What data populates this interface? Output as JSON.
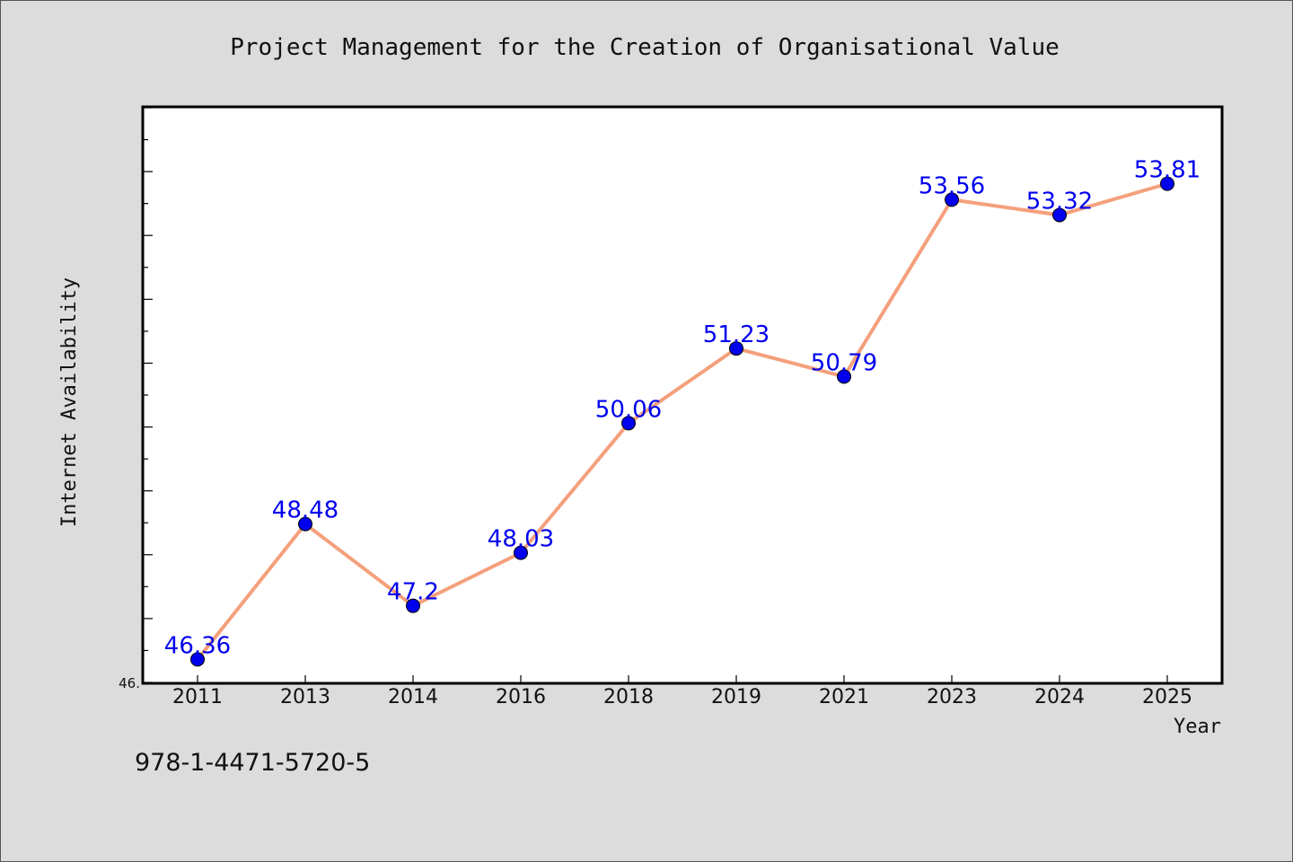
{
  "page": {
    "isbn": "978-1-4471-5720-5"
  },
  "chart_data": {
    "type": "line",
    "title": "Project Management for the Creation of Organisational Value",
    "xlabel": "Year",
    "ylabel": "Internet Availability",
    "categories": [
      "2011",
      "2013",
      "2014",
      "2016",
      "2018",
      "2019",
      "2021",
      "2023",
      "2024",
      "2025"
    ],
    "series": [
      {
        "values": [
          46.36,
          48.48,
          47.2,
          48.03,
          50.06,
          51.23,
          50.79,
          53.56,
          53.32,
          53.81
        ],
        "labels": [
          "46.36",
          "48.48",
          "47.2",
          "48.03",
          "50.06",
          "51.23",
          "50.79",
          "53.56",
          "53.32",
          "53.81"
        ],
        "line_color": "#f4a07c",
        "marker_color": "#0000ee"
      }
    ],
    "ylim": [
      46.0,
      55.0
    ],
    "y_tick_label_visible": "46.",
    "grid": false,
    "legend": "none"
  }
}
